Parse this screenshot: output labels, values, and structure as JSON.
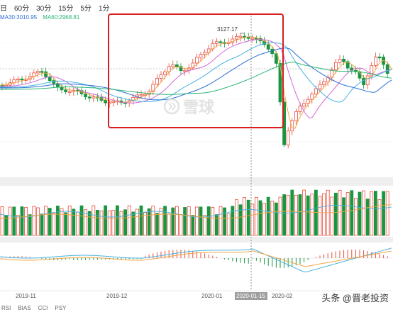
{
  "toolbar": {
    "periods": [
      "日",
      "60分",
      "30分",
      "15分",
      "5分",
      "1分"
    ]
  },
  "legend": {
    "ma30": "MA30:3010.95",
    "ma60": "MA60:2968.81",
    "ma30_color": "#2b6fd6",
    "ma60_color": "#2bb673"
  },
  "price": {
    "high_label": "3127.17",
    "up_color": "#e84c3d",
    "down_color": "#1a9641",
    "highlight_color": "#d81e1e"
  },
  "axis": {
    "dates": [
      "2019-11",
      "2019-12",
      "2020-01",
      "2020-01-15",
      "2020-02"
    ]
  },
  "indicators": [
    "RSI",
    "BIAS",
    "CCI",
    "PSY"
  ],
  "watermark": {
    "text": "头条 @晋老投资",
    "logo_text": "雪球"
  },
  "chart_data": {
    "type": "candlestick",
    "high_value": 3127.17,
    "cursor_date": "2020-01-15",
    "series": [
      {
        "name": "MA30",
        "value": 3010.95
      },
      {
        "name": "MA60",
        "value": 2968.81
      }
    ]
  }
}
